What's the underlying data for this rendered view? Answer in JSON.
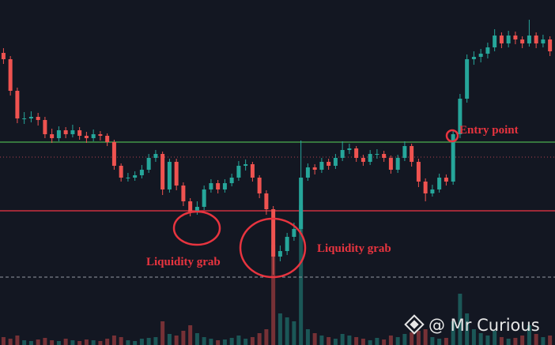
{
  "chart_data": {
    "type": "candlestick",
    "ylim": [
      0,
      437
    ],
    "volume_ylim": [
      0,
      437
    ],
    "up_color": "#26a69a",
    "down_color": "#ef5350",
    "candles": [
      [
        370,
        376,
        356,
        362
      ],
      [
        362,
        366,
        316,
        322
      ],
      [
        322,
        326,
        281,
        287
      ],
      [
        287,
        295,
        280,
        287
      ],
      [
        287,
        296,
        282,
        289
      ],
      [
        289,
        294,
        278,
        285
      ],
      [
        285,
        289,
        262,
        267
      ],
      [
        267,
        274,
        256,
        262
      ],
      [
        262,
        277,
        258,
        272
      ],
      [
        272,
        276,
        262,
        267
      ],
      [
        267,
        279,
        263,
        272
      ],
      [
        272,
        276,
        260,
        265
      ],
      [
        265,
        270,
        256,
        262
      ],
      [
        262,
        273,
        258,
        267
      ],
      [
        267,
        271,
        259,
        265
      ],
      [
        265,
        268,
        252,
        257
      ],
      [
        257,
        260,
        222,
        227
      ],
      [
        227,
        230,
        207,
        212
      ],
      [
        212,
        218,
        207,
        212
      ],
      [
        212,
        220,
        208,
        215
      ],
      [
        215,
        228,
        211,
        222
      ],
      [
        222,
        242,
        218,
        237
      ],
      [
        237,
        247,
        232,
        242
      ],
      [
        242,
        245,
        190,
        197
      ],
      [
        197,
        236,
        193,
        232
      ],
      [
        232,
        236,
        196,
        202
      ],
      [
        202,
        206,
        176,
        182
      ],
      [
        182,
        186,
        163,
        169
      ],
      [
        169,
        182,
        165,
        175
      ],
      [
        175,
        202,
        171,
        197
      ],
      [
        197,
        210,
        193,
        205
      ],
      [
        205,
        209,
        192,
        197
      ],
      [
        197,
        210,
        193,
        205
      ],
      [
        205,
        217,
        201,
        212
      ],
      [
        212,
        233,
        208,
        227
      ],
      [
        227,
        235,
        221,
        229
      ],
      [
        229,
        232,
        207,
        212
      ],
      [
        212,
        215,
        186,
        192
      ],
      [
        192,
        196,
        165,
        172
      ],
      [
        172,
        176,
        89,
        112
      ],
      [
        112,
        126,
        106,
        119
      ],
      [
        119,
        142,
        114,
        137
      ],
      [
        137,
        155,
        132,
        147
      ],
      [
        147,
        259,
        143,
        212
      ],
      [
        212,
        230,
        208,
        225
      ],
      [
        225,
        229,
        216,
        222
      ],
      [
        222,
        237,
        218,
        232
      ],
      [
        232,
        236,
        222,
        227
      ],
      [
        227,
        242,
        223,
        237
      ],
      [
        237,
        258,
        233,
        247
      ],
      [
        247,
        255,
        242,
        249
      ],
      [
        249,
        252,
        232,
        237
      ],
      [
        237,
        241,
        227,
        232
      ],
      [
        232,
        247,
        228,
        242
      ],
      [
        242,
        248,
        236,
        242
      ],
      [
        242,
        246,
        232,
        237
      ],
      [
        237,
        240,
        217,
        222
      ],
      [
        222,
        241,
        218,
        237
      ],
      [
        237,
        258,
        233,
        252
      ],
      [
        252,
        255,
        226,
        232
      ],
      [
        232,
        236,
        200,
        207
      ],
      [
        207,
        211,
        182,
        192
      ],
      [
        192,
        203,
        188,
        197
      ],
      [
        197,
        217,
        193,
        212
      ],
      [
        212,
        216,
        202,
        207
      ],
      [
        207,
        272,
        203,
        267
      ],
      [
        267,
        318,
        262,
        312
      ],
      [
        312,
        368,
        307,
        362
      ],
      [
        362,
        372,
        355,
        365
      ],
      [
        365,
        375,
        358,
        369
      ],
      [
        369,
        383,
        363,
        377
      ],
      [
        377,
        400,
        372,
        392
      ],
      [
        392,
        396,
        376,
        382
      ],
      [
        382,
        398,
        377,
        392
      ],
      [
        392,
        397,
        381,
        387
      ],
      [
        387,
        391,
        376,
        382
      ],
      [
        382,
        412,
        378,
        392
      ],
      [
        392,
        396,
        376,
        382
      ],
      [
        382,
        393,
        377,
        387
      ],
      [
        387,
        391,
        366,
        372
      ]
    ],
    "volume": [
      10,
      8,
      12,
      6,
      5,
      7,
      9,
      6,
      5,
      8,
      6,
      5,
      7,
      6,
      5,
      8,
      12,
      10,
      6,
      5,
      8,
      9,
      10,
      30,
      14,
      12,
      18,
      25,
      15,
      10,
      8,
      6,
      7,
      9,
      12,
      8,
      10,
      15,
      20,
      127,
      40,
      35,
      30,
      177,
      20,
      15,
      12,
      10,
      8,
      14,
      12,
      10,
      8,
      6,
      9,
      7,
      12,
      10,
      14,
      16,
      18,
      20,
      10,
      8,
      9,
      30,
      65,
      40,
      20,
      15,
      12,
      18,
      10,
      8,
      9,
      12,
      25,
      14,
      10,
      12
    ],
    "levels": [
      {
        "value": 257,
        "color": "#4caf50",
        "style": "solid"
      },
      {
        "value": 238,
        "color": "#b2424d",
        "style": "dotted"
      },
      {
        "value": 170,
        "color": "#f23645",
        "style": "solid"
      },
      {
        "value": 86,
        "color": "#9598a1",
        "style": "dashed"
      }
    ],
    "annotations": [
      "Liquidity grab",
      "Liquidity grab",
      "Entry point"
    ],
    "watermark": "@ Mr Curious"
  }
}
